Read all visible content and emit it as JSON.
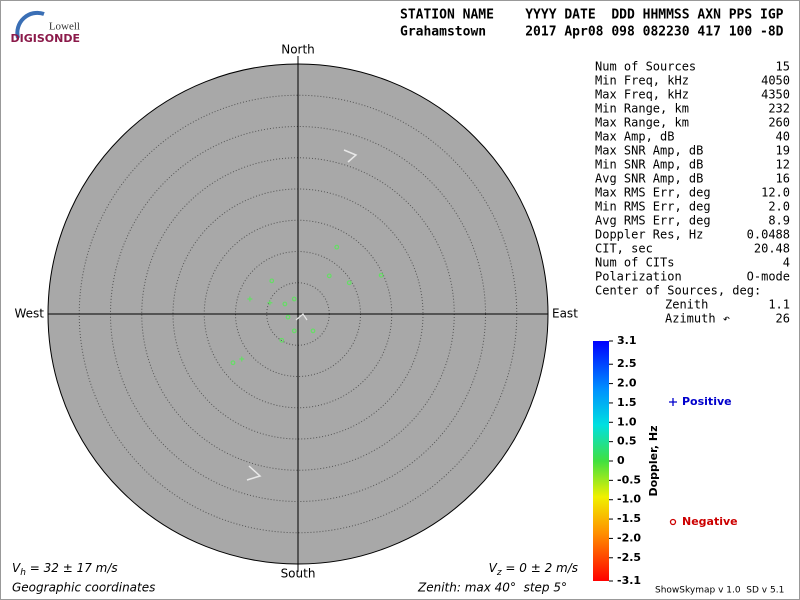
{
  "logo": {
    "top": "Lowell",
    "bottom": "DIGISONDE"
  },
  "header": {
    "labels": "STATION NAME    YYYY DATE  DDD HHMMSS AXN PPS IGP",
    "values": "Grahamstown     2017 Apr08 098 082230 417 100 -8D"
  },
  "chart_data": {
    "type": "skymap",
    "directions": {
      "north": "North",
      "south": "South",
      "west": "West",
      "east": "East"
    },
    "rlim": [
      0,
      40
    ],
    "rticks": [
      5,
      10,
      15,
      20,
      25,
      30,
      35
    ],
    "series": [
      {
        "name": "Positive",
        "marker": "+",
        "color": "#0000cc",
        "point_color": "#66dd66",
        "x": [
          -7.7,
          -4.5,
          -9.0
        ],
        "y": [
          2.4,
          1.8,
          -7.2
        ]
      },
      {
        "name": "Negative",
        "marker": "o",
        "color": "#cc0000",
        "point_color": "#66dd66",
        "x": [
          6.2,
          5.0,
          13.3,
          8.2,
          -4.2,
          -2.1,
          -0.6,
          -1.6,
          2.4,
          -0.6,
          -2.6,
          -10.4
        ],
        "y": [
          10.7,
          6.1,
          6.2,
          5.0,
          5.3,
          1.6,
          2.4,
          -0.5,
          -2.7,
          -2.7,
          -4.2,
          -7.8
        ]
      }
    ],
    "colorbar": {
      "label": "Doppler, Hz",
      "lim": [
        -3.1,
        3.1
      ],
      "ticks": [
        3.1,
        2.5,
        {
          "value": 2,
          "label": "2.0"
        },
        1.5,
        {
          "value": 1,
          "label": "1.0"
        },
        0.5,
        0,
        -0.5,
        {
          "value": -1,
          "label": "-1.0"
        },
        -1.5,
        {
          "value": -2,
          "label": "-2.0"
        },
        -2.5,
        -3.1
      ]
    }
  },
  "stats": [
    [
      "Num of Sources",
      "15"
    ],
    [
      "Min Freq, kHz",
      "4050"
    ],
    [
      "Max Freq, kHz",
      "4350"
    ],
    [
      "Min Range, km",
      "232"
    ],
    [
      "Max Range, km",
      "260"
    ],
    [
      "Max Amp, dB",
      "40"
    ],
    [
      "Max SNR Amp, dB",
      "19"
    ],
    [
      "Min SNR Amp, dB",
      "12"
    ],
    [
      "Avg SNR Amp, dB",
      "16"
    ],
    [
      "Max RMS Err, deg",
      "12.0"
    ],
    [
      "Min RMS Err, deg",
      "2.0"
    ],
    [
      "Avg RMS Err, deg",
      "8.9"
    ],
    [
      "Doppler Res, Hz",
      "0.0488"
    ],
    [
      "CIT, sec",
      "20.48"
    ],
    [
      "Num of CITs",
      "4"
    ],
    [
      "Polarization",
      "O-mode"
    ]
  ],
  "center": {
    "title": "Center of Sources, deg:",
    "rows": [
      [
        "Zenith",
        "1.1"
      ],
      [
        "Azimuth ↶",
        "26"
      ]
    ]
  },
  "footer": {
    "vh": {
      "symbol": "V",
      "subscript": "h",
      "text": " = 32 ± 17 m/s"
    },
    "vz": {
      "symbol": "V",
      "subscript": "z",
      "text": " = 0 ± 2 m/s"
    },
    "coordinates": "Geographic coordinates",
    "zenith": "Zenith: max 40°  step 5°",
    "version": "ShowSkymap v 1.0  SD v 5.1"
  }
}
